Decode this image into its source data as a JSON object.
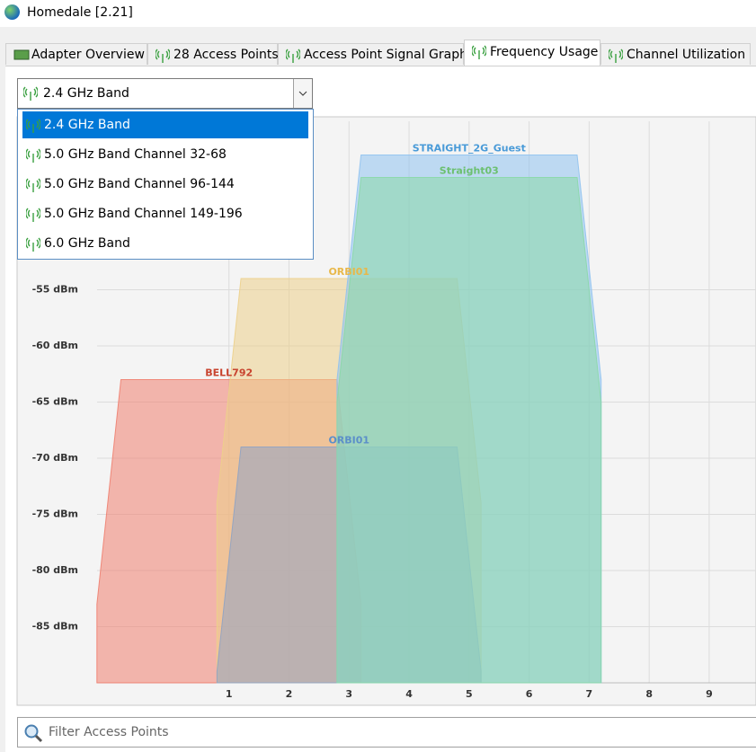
{
  "window": {
    "title": "Homedale [2.21]"
  },
  "tabs": [
    "Adapter Overview",
    "28 Access Points",
    "Access Point Signal Graph",
    "Frequency Usage",
    "Channel Utilization"
  ],
  "band_select": {
    "selected": "2.4 GHz Band",
    "options": [
      "2.4 GHz Band",
      "5.0 GHz Band Channel 32-68",
      "5.0 GHz Band Channel 96-144",
      "5.0 GHz Band Channel 149-196",
      "6.0 GHz Band"
    ]
  },
  "filter": {
    "placeholder": "Filter Access Points"
  },
  "chart_data": {
    "type": "frequency-usage",
    "xlim": [
      -2.5,
      9.75
    ],
    "xticks": [
      1,
      2,
      3,
      4,
      5,
      6,
      7,
      8,
      9
    ],
    "ylim": [
      -90,
      -40
    ],
    "yticks": [
      {
        "value": -85,
        "label": "-85 dBm"
      },
      {
        "value": -80,
        "label": "-80 dBm"
      },
      {
        "value": -75,
        "label": "-75 dBm"
      },
      {
        "value": -70,
        "label": "-70 dBm"
      },
      {
        "value": -65,
        "label": "-65 dBm"
      },
      {
        "value": -60,
        "label": "-60 dBm"
      },
      {
        "value": -55,
        "label": "-55 dBm"
      }
    ],
    "grid": true,
    "series": [
      {
        "name": "BELL792",
        "channel": 1,
        "signal": -63,
        "color": "#f08070",
        "label_color": "#c8432e"
      },
      {
        "name": "ORBI01",
        "channel": 3,
        "signal": -54,
        "color": "#edd08a",
        "label_color": "#e8b84a"
      },
      {
        "name": "ORBI01",
        "channel": 3,
        "signal": -69,
        "color": "#8fa3c4",
        "label_color": "#5b8fc9"
      },
      {
        "name": "STRAIGHT_2G_Guest",
        "channel": 5,
        "signal": -43,
        "color": "#8fc2f0",
        "label_color": "#4a9bd8"
      },
      {
        "name": "Straight03",
        "channel": 5,
        "signal": -45,
        "color": "#8ad8a8",
        "label_color": "#6cc070"
      }
    ]
  }
}
